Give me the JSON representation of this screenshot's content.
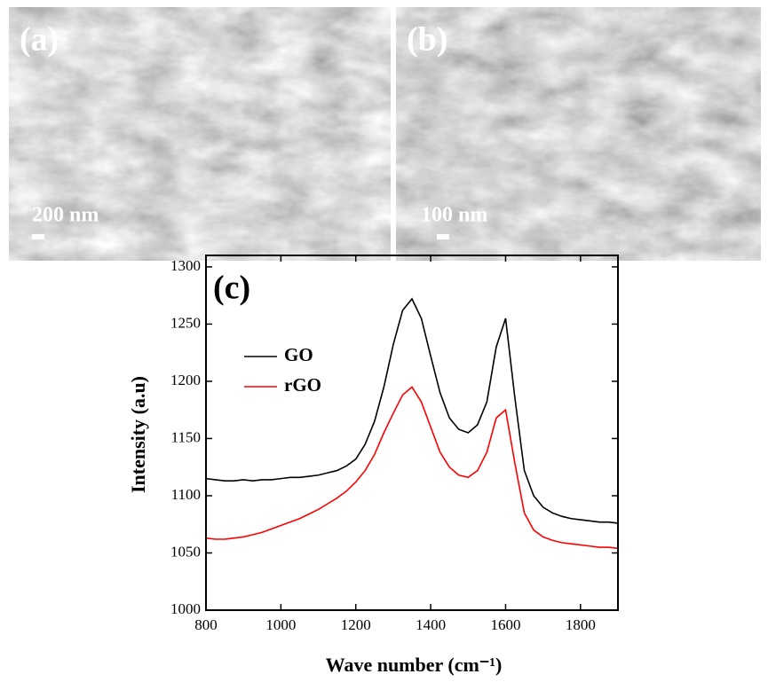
{
  "panels": [
    {
      "label": "(a)",
      "scale_bar": "200 nm"
    },
    {
      "label": "(b)",
      "scale_bar": "100 nm"
    }
  ],
  "chart_data": {
    "type": "line",
    "panel_label": "(c)",
    "xlabel": "Wave number (cm⁻¹)",
    "ylabel": "Intensity (a.u)",
    "xlim": [
      800,
      1900
    ],
    "ylim": [
      1000,
      1310
    ],
    "xticks": [
      800,
      1000,
      1200,
      1400,
      1600,
      1800
    ],
    "yticks": [
      1000,
      1050,
      1100,
      1150,
      1200,
      1250,
      1300
    ],
    "x": [
      800,
      825,
      850,
      875,
      900,
      925,
      950,
      975,
      1000,
      1025,
      1050,
      1075,
      1100,
      1125,
      1150,
      1175,
      1200,
      1225,
      1250,
      1275,
      1300,
      1325,
      1350,
      1375,
      1400,
      1425,
      1450,
      1475,
      1500,
      1525,
      1550,
      1575,
      1600,
      1625,
      1650,
      1675,
      1700,
      1725,
      1750,
      1775,
      1800,
      1825,
      1850,
      1875,
      1900
    ],
    "series": [
      {
        "name": "GO",
        "color": "#000000",
        "values": [
          1115,
          1114,
          1113,
          1113,
          1114,
          1113,
          1114,
          1114,
          1115,
          1116,
          1116,
          1117,
          1118,
          1120,
          1122,
          1126,
          1132,
          1145,
          1165,
          1195,
          1232,
          1262,
          1272,
          1255,
          1222,
          1190,
          1168,
          1158,
          1155,
          1162,
          1182,
          1230,
          1255,
          1185,
          1122,
          1100,
          1090,
          1085,
          1082,
          1080,
          1079,
          1078,
          1077,
          1077,
          1076
        ]
      },
      {
        "name": "rGO",
        "color": "#ff0000",
        "values": [
          1063,
          1062,
          1062,
          1063,
          1064,
          1066,
          1068,
          1071,
          1074,
          1077,
          1080,
          1084,
          1088,
          1093,
          1098,
          1104,
          1112,
          1122,
          1136,
          1155,
          1172,
          1188,
          1195,
          1182,
          1160,
          1138,
          1125,
          1118,
          1116,
          1122,
          1138,
          1168,
          1175,
          1128,
          1085,
          1070,
          1064,
          1061,
          1059,
          1058,
          1057,
          1056,
          1055,
          1055,
          1054
        ]
      }
    ]
  }
}
